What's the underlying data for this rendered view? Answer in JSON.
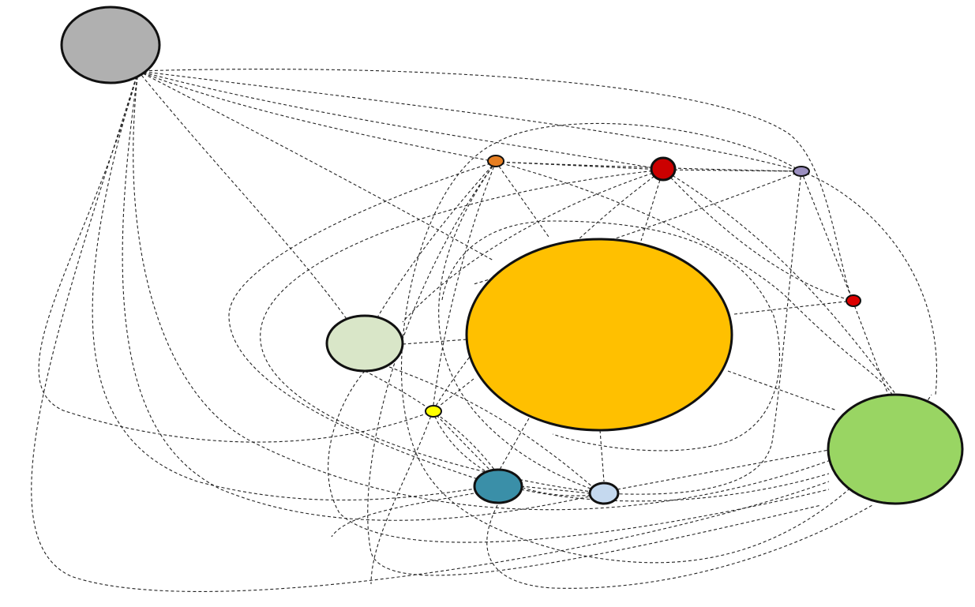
{
  "diagram": {
    "type": "network-graph",
    "edge_style": "dashed",
    "nodes": [
      {
        "id": "gray",
        "color": "#b0b0b0",
        "size": "large"
      },
      {
        "id": "orange",
        "color": "#e67e22",
        "size": "tiny"
      },
      {
        "id": "red",
        "color": "#cc0000",
        "size": "small"
      },
      {
        "id": "purple",
        "color": "#9b8fc0",
        "size": "tiny"
      },
      {
        "id": "red-small",
        "color": "#dd0000",
        "size": "tiny"
      },
      {
        "id": "gold",
        "color": "#ffc000",
        "size": "huge"
      },
      {
        "id": "light-green",
        "color": "#d9e6c8",
        "size": "medium"
      },
      {
        "id": "yellow",
        "color": "#ffff00",
        "size": "tiny"
      },
      {
        "id": "teal",
        "color": "#3a8fa8",
        "size": "small"
      },
      {
        "id": "light-blue",
        "color": "#c5d9ef",
        "size": "small"
      },
      {
        "id": "green",
        "color": "#99d563",
        "size": "large"
      }
    ]
  }
}
